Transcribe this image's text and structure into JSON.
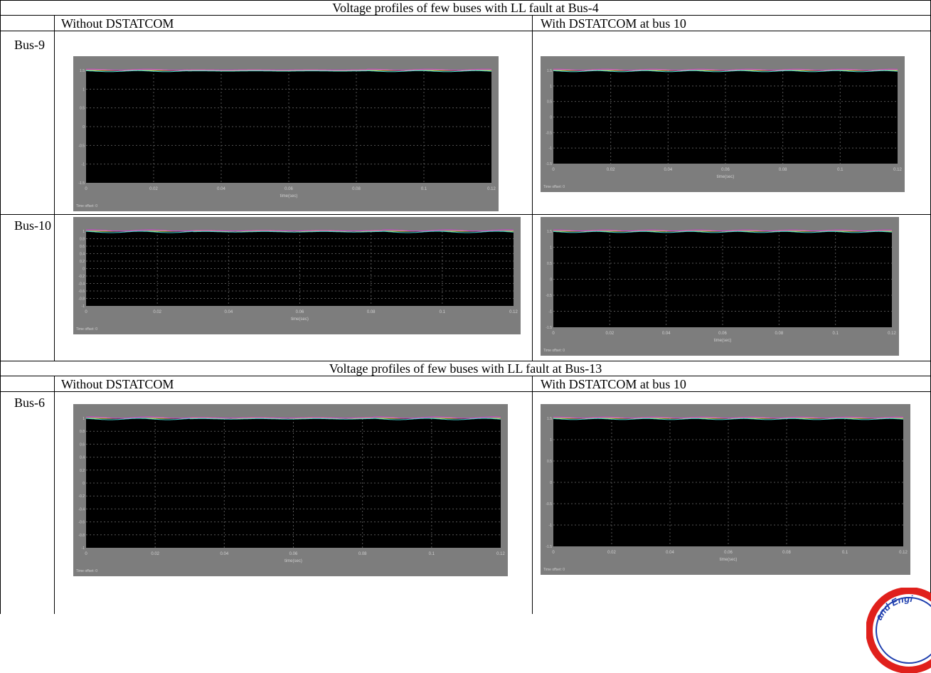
{
  "sections": [
    {
      "title": "Voltage profiles of few buses with LL fault at Bus-4",
      "col_without": "Without DSTATCOM",
      "col_with": "With DSTATCOM at bus 10",
      "rows": [
        {
          "bus": "Bus-9",
          "without": {
            "yticks": [
              "1.5",
              "1",
              "0.5",
              "0",
              "-0.5",
              "-1",
              "-1.5"
            ],
            "xticks": [
              "0",
              "0.02",
              "0.04",
              "0.06",
              "0.08",
              "0.1",
              "0.12"
            ],
            "xlabel": "time(sec)",
            "offset": "Time offset:  0"
          },
          "with": {
            "yticks": [
              "1.5",
              "1",
              "0.5",
              "0",
              "-0.5",
              "-1",
              "-1.5"
            ],
            "xticks": [
              "0",
              "0.02",
              "0.04",
              "0.06",
              "0.08",
              "0.1",
              "0.12"
            ],
            "xlabel": "time(sec)",
            "offset": "Time offset:  0"
          }
        },
        {
          "bus": "Bus-10",
          "without": {
            "yticks": [
              "1",
              "0.8",
              "0.6",
              "0.4",
              "0.2",
              "0",
              "-0.2",
              "-0.4",
              "-0.6",
              "-0.8",
              "-1"
            ],
            "xticks": [
              "0",
              "0.02",
              "0.04",
              "0.06",
              "0.08",
              "0.1",
              "0.12"
            ],
            "xlabel": "time(sec)",
            "offset": "Time offset:  0"
          },
          "with": {
            "yticks": [
              "1.5",
              "1",
              "0.5",
              "0",
              "-0.5",
              "-1",
              "-1.5"
            ],
            "xticks": [
              "0",
              "0.02",
              "0.04",
              "0.06",
              "0.08",
              "0.1",
              "0.12"
            ],
            "xlabel": "time(sec)",
            "offset": "Time offset:  0"
          }
        }
      ]
    },
    {
      "title": "Voltage profiles of few buses with LL fault at Bus-13",
      "col_without": "Without DSTATCOM",
      "col_with": "With DSTATCOM at bus 10",
      "rows": [
        {
          "bus": "Bus-6",
          "without": {
            "yticks": [
              "1",
              "0.8",
              "0.6",
              "0.4",
              "0.2",
              "0",
              "-0.2",
              "-0.4",
              "-0.6",
              "-0.8",
              "-1"
            ],
            "xticks": [
              "0",
              "0.02",
              "0.04",
              "0.06",
              "0.08",
              "0.1",
              "0.12"
            ],
            "xlabel": "time(sec)",
            "offset": "Time offset:  0"
          },
          "with": {
            "yticks": [
              "1.5",
              "1",
              "0.5",
              "0",
              "-0.5",
              "-1",
              "-1.5"
            ],
            "xticks": [
              "0",
              "0.02",
              "0.04",
              "0.06",
              "0.08",
              "0.1",
              "0.12"
            ],
            "xlabel": "time(sec)",
            "offset": "Time offset:  0"
          }
        }
      ]
    }
  ],
  "seal_text": "and Engi",
  "colors": {
    "scope_bg": "#000000",
    "frame": "#7d7d7d",
    "yellow": "#e8e84a",
    "magenta": "#d63fd6",
    "cyan": "#3fd6d6",
    "grid": "#555555",
    "tick": "#d0d0d0",
    "seal_red": "#e0201c",
    "seal_blue": "#1f3fae"
  }
}
